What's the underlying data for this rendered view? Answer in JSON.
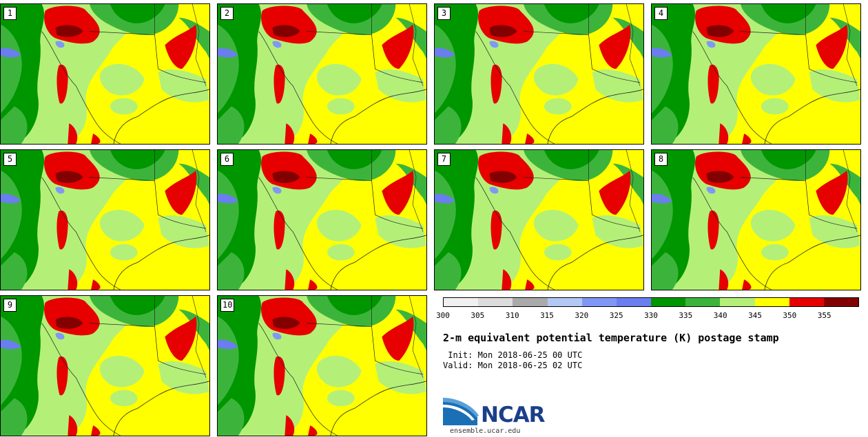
{
  "panels": [
    {
      "label": "1"
    },
    {
      "label": "2"
    },
    {
      "label": "3"
    },
    {
      "label": "4"
    },
    {
      "label": "5"
    },
    {
      "label": "6"
    },
    {
      "label": "7"
    },
    {
      "label": "8"
    },
    {
      "label": "9"
    },
    {
      "label": "10"
    }
  ],
  "colorbar": {
    "ticks": [
      "300",
      "305",
      "310",
      "315",
      "320",
      "325",
      "330",
      "335",
      "340",
      "345",
      "350",
      "355"
    ],
    "colors": [
      "#f0f0f0",
      "#dcdcdc",
      "#aaaaaa",
      "#b4c8f5",
      "#8098f5",
      "#6a7ef0",
      "#009600",
      "#3cb43c",
      "#b4f078",
      "#ffff00",
      "#e60000",
      "#820000"
    ]
  },
  "title": "2-m equivalent potential temperature (K) postage stamp",
  "init_line": " Init: Mon 2018-06-25 00 UTC",
  "valid_line": "Valid: Mon 2018-06-25 02 UTC",
  "logo": {
    "text": "NCAR",
    "url": "ensemble.ucar.edu"
  }
}
